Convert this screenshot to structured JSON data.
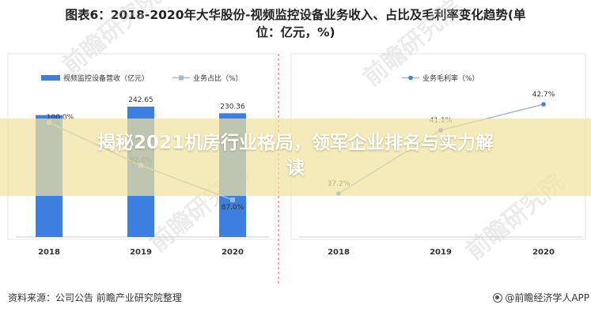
{
  "title": {
    "line1": "图表6：2018-2020年大华股份-视频监控设备业务收入、占比及毛利率变化趋势(单",
    "line2": "位：亿元，%)"
  },
  "banner": {
    "line1": "揭秘2021机房行业格局，领军企业排名与实力解",
    "line2": "读"
  },
  "source": "资料来源：公司公告 前瞻产业研究院整理",
  "brand": "@前瞻经济学人APP",
  "watermark": "前瞻研究院",
  "colors": {
    "bar": "#3d7fe0",
    "line": "#9fb8d6",
    "margin_line": "#9fb8d6",
    "divider": "#e05050"
  },
  "chart_data": [
    {
      "type": "bar+line",
      "categories": [
        "2018",
        "2019",
        "2020"
      ],
      "series": [
        {
          "name": "视频监控设备营收（亿元）",
          "kind": "bar",
          "values": [
            ",",
            242.65,
            230.36
          ],
          "labels": [
            "",
            "242.65",
            "230.36"
          ]
        },
        {
          "name": "业务占比（%）",
          "kind": "line",
          "values": [
            100.0,
            92.8,
            87.0
          ],
          "labels": [
            "100.0%",
            "92.8%",
            "87.0%"
          ]
        }
      ]
    },
    {
      "type": "line",
      "categories": [
        "2018",
        "2019",
        "2020"
      ],
      "series": [
        {
          "name": "业务毛利率（%）",
          "values": [
            37.2,
            41.1,
            42.7
          ],
          "labels": [
            "37.2%",
            "41.1%",
            "42.7%"
          ]
        }
      ]
    }
  ]
}
